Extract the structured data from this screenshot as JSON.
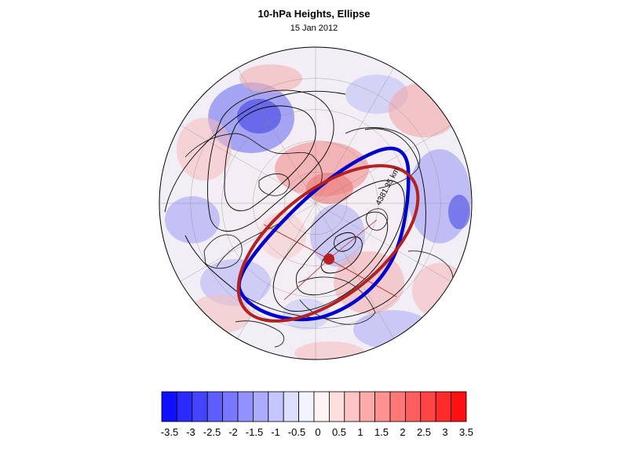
{
  "header": {
    "title": "10-hPa Heights, Ellipse",
    "subtitle": "15 Jan 2012"
  },
  "map": {
    "projection": "polar stereographic (northern hemisphere)",
    "field": "height anomaly (shaded)",
    "contour_color": "#000000",
    "ellipse_fit_color": "#b22222",
    "contour_ellipse_color": "#0000cc",
    "center_marker_color": "#b22222",
    "annotation_label": "4381.35 km"
  },
  "colorbar": {
    "ticks": [
      "-3.5",
      "-3",
      "-2.5",
      "-2",
      "-1.5",
      "-1",
      "-0.5",
      "0",
      "0.5",
      "1",
      "1.5",
      "2",
      "2.5",
      "3",
      "3.5"
    ],
    "colors": [
      "#1010ff",
      "#2a2aff",
      "#4444ff",
      "#5e5eff",
      "#7777ff",
      "#9191ff",
      "#ababff",
      "#c5c5ff",
      "#dedeff",
      "#f3f3ff",
      "#fff3f3",
      "#ffdede",
      "#ffc5c5",
      "#ffabab",
      "#ff9191",
      "#ff7777",
      "#ff5e5e",
      "#ff4444",
      "#ff2a2a",
      "#ff1010"
    ]
  }
}
